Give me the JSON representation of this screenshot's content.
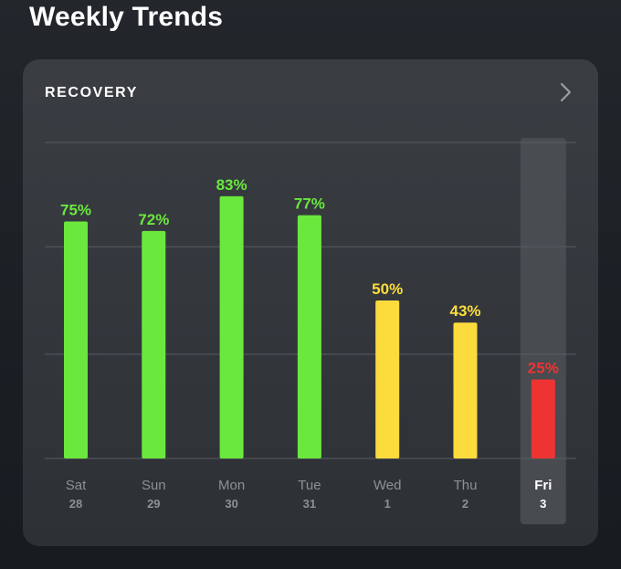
{
  "page": {
    "title": "Weekly Trends"
  },
  "card": {
    "title": "RECOVERY",
    "chevron_icon": "chevron-right-icon"
  },
  "colors": {
    "green": "#6be83d",
    "yellow": "#fcdc3c",
    "red": "#ee3333",
    "gridline": "#5a5e63",
    "label_muted": "#8d9196",
    "label_selected": "#ffffff"
  },
  "chart_data": {
    "type": "bar",
    "title": "RECOVERY",
    "ylim": [
      0,
      100
    ],
    "gridlines": [
      0,
      33,
      67,
      100
    ],
    "selected_index": 6,
    "bars": [
      {
        "day": "Sat",
        "date": "28",
        "value": 75,
        "label": "75%",
        "status": "green"
      },
      {
        "day": "Sun",
        "date": "29",
        "value": 72,
        "label": "72%",
        "status": "green"
      },
      {
        "day": "Mon",
        "date": "30",
        "value": 83,
        "label": "83%",
        "status": "green"
      },
      {
        "day": "Tue",
        "date": "31",
        "value": 77,
        "label": "77%",
        "status": "green"
      },
      {
        "day": "Wed",
        "date": "1",
        "value": 50,
        "label": "50%",
        "status": "yellow"
      },
      {
        "day": "Thu",
        "date": "2",
        "value": 43,
        "label": "43%",
        "status": "yellow"
      },
      {
        "day": "Fri",
        "date": "3",
        "value": 25,
        "label": "25%",
        "status": "red"
      }
    ]
  }
}
